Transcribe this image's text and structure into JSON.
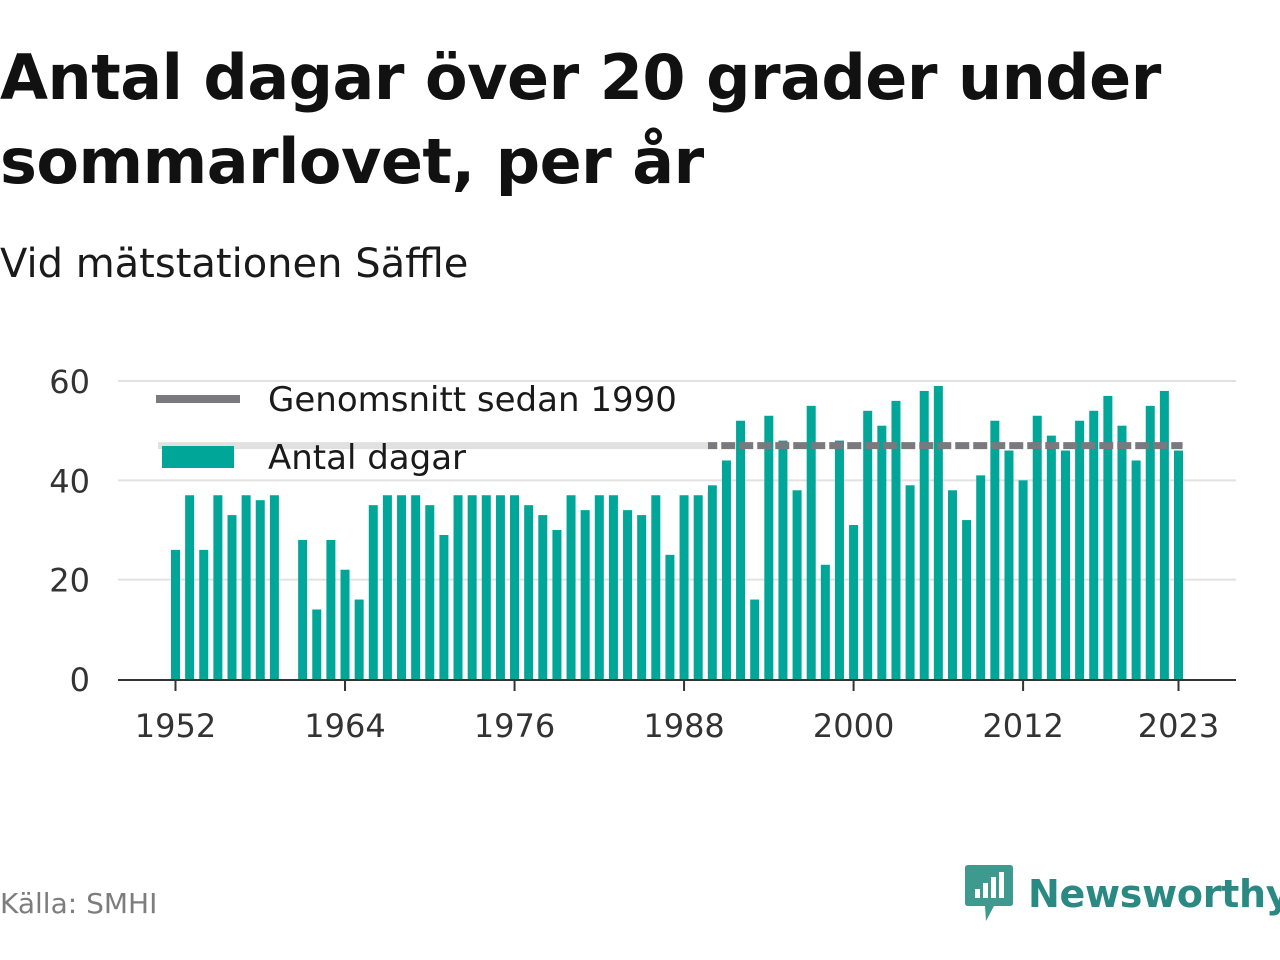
{
  "header": {
    "title": "Antal dagar över 20 grader under sommarlovet, per år",
    "subtitle": "Vid mätstationen Säffle"
  },
  "footer": {
    "source": "Källa: SMHI",
    "brand": "Newsworthy"
  },
  "colors": {
    "bar": "#00a697",
    "bar_faded": "#cdeaea",
    "average_line": "#7a797e",
    "average_line_faded": "#e1e1e1",
    "grid": "#e2e2e2",
    "axis": "#333333"
  },
  "icons": {
    "brand_logo": "bar-chart-speech-bubble-icon"
  },
  "chart_data": {
    "type": "bar",
    "title": "",
    "xlabel": "",
    "ylabel": "",
    "ylim": [
      0,
      60
    ],
    "yticks": [
      0,
      20,
      40,
      60
    ],
    "xticks": [
      "1952",
      "1964",
      "1976",
      "1988",
      "2000",
      "2012",
      "2023"
    ],
    "grid": true,
    "legend_position": "top-left",
    "x": [
      1952,
      1953,
      1954,
      1955,
      1956,
      1957,
      1958,
      1959,
      1960,
      1961,
      1962,
      1963,
      1964,
      1965,
      1966,
      1967,
      1968,
      1969,
      1970,
      1971,
      1972,
      1973,
      1974,
      1975,
      1976,
      1977,
      1978,
      1979,
      1980,
      1981,
      1982,
      1983,
      1984,
      1985,
      1986,
      1987,
      1988,
      1989,
      1990,
      1991,
      1992,
      1993,
      1994,
      1995,
      1996,
      1997,
      1998,
      1999,
      2000,
      2001,
      2002,
      2003,
      2004,
      2005,
      2006,
      2007,
      2008,
      2009,
      2010,
      2011,
      2012,
      2013,
      2014,
      2015,
      2016,
      2017,
      2018,
      2019,
      2020,
      2021,
      2022,
      2023
    ],
    "series": [
      {
        "name": "Antal dagar",
        "values": [
          26,
          37,
          26,
          37,
          33,
          37,
          36,
          37,
          null,
          28,
          14,
          28,
          22,
          16,
          35,
          37,
          37,
          37,
          35,
          29,
          37,
          37,
          37,
          37,
          37,
          35,
          33,
          30,
          37,
          34,
          37,
          37,
          34,
          33,
          37,
          25,
          37,
          37,
          39,
          44,
          52,
          16,
          53,
          48,
          38,
          55,
          23,
          48,
          31,
          54,
          51,
          56,
          39,
          58,
          59,
          38,
          32,
          41,
          52,
          46,
          40,
          53,
          49,
          46,
          52,
          54,
          57,
          51,
          44,
          55,
          58,
          46
        ]
      },
      {
        "name": "Genomsnitt sedan 1990",
        "type": "line",
        "start": 1990,
        "end": 2023,
        "value": 47
      }
    ]
  }
}
